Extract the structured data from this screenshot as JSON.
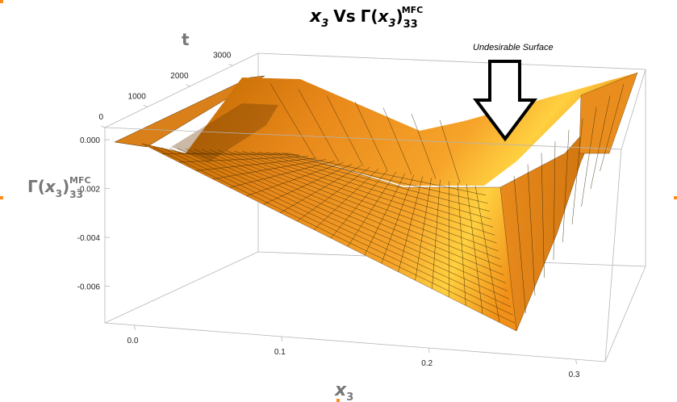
{
  "chart_data": {
    "type": "surface3d",
    "title": {
      "x_var": "x",
      "x_sub": "3",
      "vs": "Vs",
      "gamma": "Γ(",
      "gamma_var": "x",
      "gamma_var_sub": "3",
      "gamma_close": ")",
      "gamma_sub": "33",
      "gamma_sup": "MFC"
    },
    "axes": {
      "x": {
        "var": "x",
        "sub": "3",
        "ticks": [
          "0.0",
          "0.1",
          "0.2",
          "0.3"
        ],
        "range": [
          -0.02,
          0.32
        ]
      },
      "t": {
        "label": "t",
        "ticks": [
          "0",
          "1000",
          "2000",
          "3000"
        ],
        "range": [
          0,
          3600
        ]
      },
      "z": {
        "gamma": "Γ(",
        "var": "x",
        "var_sub": "3",
        "close": ")",
        "sub": "33",
        "sup": "MFC",
        "ticks": [
          "0.000",
          "-0.002",
          "-0.004",
          "-0.006"
        ],
        "range": [
          -0.0075,
          0.0005
        ]
      }
    },
    "surface": {
      "x_values": [
        0.0,
        0.05,
        0.1,
        0.15,
        0.2,
        0.25,
        0.27,
        0.3
      ],
      "t_values": [
        0,
        600,
        1200,
        1800,
        2400,
        3000,
        3600
      ],
      "gamma_at_t0": [
        0.0,
        -0.0006,
        -0.0018,
        -0.003,
        -0.0045,
        -0.0062,
        -0.0066,
        0.0
      ],
      "gamma_at_t3600": [
        0.0,
        0.0,
        -0.0004,
        -0.0009,
        -0.0013,
        -0.002,
        -0.0022,
        0.0005
      ]
    },
    "annotation": {
      "text": "Undesirable Surface"
    },
    "colors": {
      "surface_light": "#ffd040",
      "surface_mid": "#f29a1c",
      "surface_dark": "#9a5200",
      "handles": "#ff8c1a"
    }
  }
}
